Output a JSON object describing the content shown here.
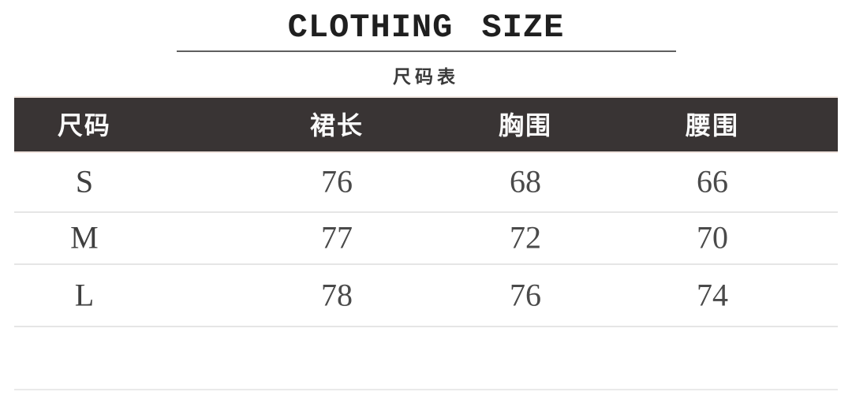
{
  "header": {
    "title": "CLOTHING SIZE",
    "subtitle": "尺码表"
  },
  "table": {
    "columns": [
      "尺码",
      "裙长",
      "胸围",
      "腰围"
    ],
    "rows": [
      {
        "size": "S",
        "values": [
          "76",
          "68",
          "66"
        ]
      },
      {
        "size": "M",
        "values": [
          "77",
          "72",
          "70"
        ]
      },
      {
        "size": "L",
        "values": [
          "78",
          "76",
          "74"
        ]
      }
    ]
  },
  "colors": {
    "header_bg": "#393434",
    "header_text": "#fafafa",
    "title_text": "#1f1f1f",
    "body_text": "#4a4a4a",
    "divider": "#e5e5e5",
    "title_rule": "#5f5f5f",
    "header_border": "#f0e4de",
    "background": "#ffffff"
  }
}
